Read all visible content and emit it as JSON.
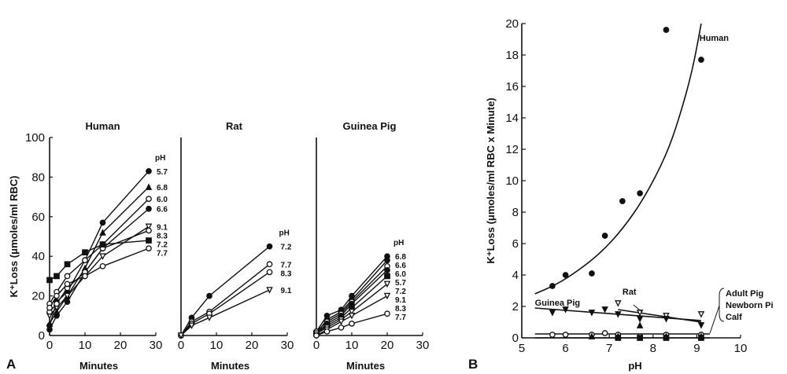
{
  "figure": {
    "panel_a_letter": "A",
    "panel_b_letter": "B"
  },
  "chart_data": [
    {
      "type": "line",
      "panel": "A",
      "title": "Human",
      "xlabel": "Minutes",
      "ylabel": "K⁺Loss (μmoles/ml RBC)",
      "xlim": [
        0,
        30
      ],
      "ylim": [
        0,
        100
      ],
      "xticks": [
        0,
        10,
        20,
        30
      ],
      "yticks": [
        0,
        20,
        40,
        60,
        80,
        100
      ],
      "legend_title": "pH",
      "series": [
        {
          "name": "5.7",
          "marker": "filled-circle",
          "points": [
            [
              0,
              5
            ],
            [
              2,
              17
            ],
            [
              5,
              22
            ],
            [
              10,
              38
            ],
            [
              15,
              57
            ],
            [
              28,
              83
            ]
          ]
        },
        {
          "name": "6.8",
          "marker": "filled-triangle",
          "points": [
            [
              0,
              6
            ],
            [
              2,
              12
            ],
            [
              5,
              20
            ],
            [
              10,
              34
            ],
            [
              15,
              52
            ],
            [
              28,
              75
            ]
          ]
        },
        {
          "name": "6.0",
          "marker": "open-circle",
          "points": [
            [
              0,
              16
            ],
            [
              2,
              22
            ],
            [
              5,
              30
            ],
            [
              10,
              38
            ],
            [
              15,
              46
            ],
            [
              28,
              69
            ]
          ]
        },
        {
          "name": "6.6",
          "marker": "filled-circle",
          "points": [
            [
              0,
              3
            ],
            [
              2,
              10
            ],
            [
              5,
              17
            ],
            [
              10,
              32
            ],
            [
              15,
              44
            ],
            [
              28,
              64
            ]
          ]
        },
        {
          "name": "9.1",
          "marker": "open-triangle-down",
          "points": [
            [
              0,
              10
            ],
            [
              2,
              14
            ],
            [
              5,
              20
            ],
            [
              10,
              30
            ],
            [
              15,
              40
            ],
            [
              28,
              55
            ]
          ]
        },
        {
          "name": "8.3",
          "marker": "open-circle",
          "points": [
            [
              0,
              12
            ],
            [
              2,
              16
            ],
            [
              5,
              24
            ],
            [
              10,
              32
            ],
            [
              15,
              44
            ],
            [
              28,
              53
            ]
          ]
        },
        {
          "name": "7.2",
          "marker": "filled-square",
          "points": [
            [
              0,
              28
            ],
            [
              2,
              30
            ],
            [
              5,
              36
            ],
            [
              10,
              42
            ],
            [
              15,
              46
            ],
            [
              28,
              48
            ]
          ]
        },
        {
          "name": "7.7",
          "marker": "open-circle",
          "points": [
            [
              0,
              14
            ],
            [
              2,
              20
            ],
            [
              5,
              26
            ],
            [
              10,
              30
            ],
            [
              15,
              35
            ],
            [
              28,
              44
            ]
          ]
        }
      ]
    },
    {
      "type": "line",
      "panel": "A",
      "title": "Rat",
      "xlabel": "Minutes",
      "ylabel": "",
      "xlim": [
        0,
        30
      ],
      "ylim": [
        0,
        100
      ],
      "xticks": [
        0,
        10,
        20,
        30
      ],
      "legend_title": "pH",
      "series": [
        {
          "name": "7.2",
          "marker": "filled-circle",
          "points": [
            [
              0,
              0
            ],
            [
              3,
              9
            ],
            [
              8,
              20
            ],
            [
              25,
              45
            ]
          ]
        },
        {
          "name": "7.7",
          "marker": "open-circle",
          "points": [
            [
              0,
              0
            ],
            [
              3,
              7
            ],
            [
              8,
              12
            ],
            [
              25,
              36
            ]
          ]
        },
        {
          "name": "8.3",
          "marker": "open-circle",
          "points": [
            [
              0,
              0
            ],
            [
              3,
              6
            ],
            [
              8,
              11
            ],
            [
              25,
              32
            ]
          ]
        },
        {
          "name": "9.1",
          "marker": "open-triangle-down",
          "points": [
            [
              0,
              0
            ],
            [
              3,
              5
            ],
            [
              8,
              9
            ],
            [
              25,
              23
            ]
          ]
        }
      ]
    },
    {
      "type": "line",
      "panel": "A",
      "title": "Guinea Pig",
      "xlabel": "Minutes",
      "ylabel": "",
      "xlim": [
        0,
        30
      ],
      "ylim": [
        0,
        100
      ],
      "xticks": [
        0,
        10,
        20,
        30
      ],
      "legend_title": "pH",
      "series": [
        {
          "name": "6.8",
          "marker": "filled-circle",
          "points": [
            [
              0,
              2
            ],
            [
              3,
              10
            ],
            [
              7,
              13
            ],
            [
              10,
              20
            ],
            [
              20,
              40
            ]
          ]
        },
        {
          "name": "6.6",
          "marker": "filled-circle",
          "points": [
            [
              0,
              1
            ],
            [
              3,
              8
            ],
            [
              7,
              12
            ],
            [
              10,
              18
            ],
            [
              20,
              38
            ]
          ]
        },
        {
          "name": "6.0",
          "marker": "open-circle",
          "points": [
            [
              0,
              2
            ],
            [
              3,
              7
            ],
            [
              7,
              11
            ],
            [
              10,
              17
            ],
            [
              20,
              35
            ]
          ]
        },
        {
          "name": "5.7",
          "marker": "filled-circle",
          "points": [
            [
              0,
              1
            ],
            [
              3,
              6
            ],
            [
              7,
              10
            ],
            [
              10,
              16
            ],
            [
              20,
              33
            ]
          ]
        },
        {
          "name": "7.2",
          "marker": "filled-square",
          "points": [
            [
              0,
              1
            ],
            [
              3,
              5
            ],
            [
              7,
              9
            ],
            [
              10,
              14
            ],
            [
              20,
              30
            ]
          ]
        },
        {
          "name": "9.1",
          "marker": "open-triangle-down",
          "points": [
            [
              0,
              1
            ],
            [
              3,
              4
            ],
            [
              7,
              8
            ],
            [
              10,
              12
            ],
            [
              20,
              26
            ]
          ]
        },
        {
          "name": "8.3",
          "marker": "open-triangle-down",
          "points": [
            [
              0,
              0
            ],
            [
              3,
              3
            ],
            [
              7,
              7
            ],
            [
              10,
              10
            ],
            [
              20,
              20
            ]
          ]
        },
        {
          "name": "7.7",
          "marker": "open-circle",
          "points": [
            [
              0,
              0
            ],
            [
              3,
              2
            ],
            [
              7,
              4
            ],
            [
              10,
              6
            ],
            [
              20,
              11
            ]
          ]
        }
      ]
    },
    {
      "type": "scatter",
      "panel": "B",
      "title": "",
      "xlabel": "pH",
      "ylabel": "K⁺Loss (μmoles/ml RBC x Minute)",
      "xlim": [
        5,
        10
      ],
      "ylim": [
        0,
        20
      ],
      "xticks": [
        5,
        6,
        7,
        8,
        9,
        10
      ],
      "yticks": [
        0,
        2,
        4,
        6,
        8,
        10,
        12,
        14,
        16,
        18,
        20
      ],
      "series": [
        {
          "name": "Human",
          "marker": "filled-circle",
          "points": [
            [
              5.7,
              3.3
            ],
            [
              6.0,
              4.0
            ],
            [
              6.6,
              4.1
            ],
            [
              6.9,
              6.5
            ],
            [
              7.3,
              8.7
            ],
            [
              7.7,
              9.2
            ],
            [
              8.3,
              19.6
            ],
            [
              9.1,
              17.7
            ]
          ],
          "fit_curve": [
            [
              5.3,
              2.8
            ],
            [
              5.8,
              3.4
            ],
            [
              6.3,
              4.3
            ],
            [
              6.8,
              5.4
            ],
            [
              7.3,
              6.9
            ],
            [
              7.8,
              8.9
            ],
            [
              8.3,
              11.6
            ],
            [
              8.6,
              14.0
            ],
            [
              8.9,
              17.0
            ],
            [
              9.1,
              20.0
            ]
          ]
        },
        {
          "name": "Rat",
          "marker": "open-triangle-down",
          "points": [
            [
              7.2,
              2.2
            ],
            [
              7.7,
              1.6
            ],
            [
              8.3,
              1.4
            ],
            [
              9.1,
              1.5
            ]
          ],
          "fit_curve": [
            [
              7.2,
              1.8
            ],
            [
              9.1,
              1.0
            ]
          ]
        },
        {
          "name": "Guinea Pig",
          "marker": "filled-triangle-down",
          "points": [
            [
              5.7,
              1.6
            ],
            [
              6.0,
              1.8
            ],
            [
              6.6,
              1.6
            ],
            [
              6.9,
              1.8
            ],
            [
              7.2,
              1.5
            ],
            [
              7.7,
              1.2
            ],
            [
              8.3,
              1.2
            ],
            [
              9.1,
              0.8
            ]
          ],
          "fit_curve": [
            [
              5.3,
              1.9
            ],
            [
              9.1,
              1.1
            ]
          ]
        },
        {
          "name": "Adult Pig",
          "marker": "open-circle",
          "points": [
            [
              5.7,
              0.2
            ],
            [
              6.0,
              0.2
            ],
            [
              6.6,
              0.2
            ],
            [
              6.9,
              0.3
            ],
            [
              7.2,
              0.2
            ],
            [
              7.7,
              0.1
            ],
            [
              8.3,
              0.2
            ],
            [
              9.1,
              0.2
            ]
          ],
          "fit_curve": [
            [
              5.3,
              0.25
            ],
            [
              9.3,
              0.25
            ]
          ]
        },
        {
          "name": "Newborn Pi",
          "marker": "filled-triangle",
          "points": [
            [
              6.6,
              0.1
            ],
            [
              7.2,
              0.1
            ],
            [
              7.7,
              0.8
            ],
            [
              8.3,
              0.1
            ],
            [
              9.1,
              0.1
            ]
          ]
        },
        {
          "name": "Calf",
          "marker": "filled-square",
          "points": [
            [
              7.2,
              0.0
            ],
            [
              7.7,
              0.0
            ],
            [
              8.3,
              0.0
            ],
            [
              9.1,
              0.0
            ]
          ],
          "fit_curve": [
            [
              5.3,
              0.0
            ],
            [
              9.3,
              0.0
            ]
          ]
        }
      ]
    }
  ]
}
